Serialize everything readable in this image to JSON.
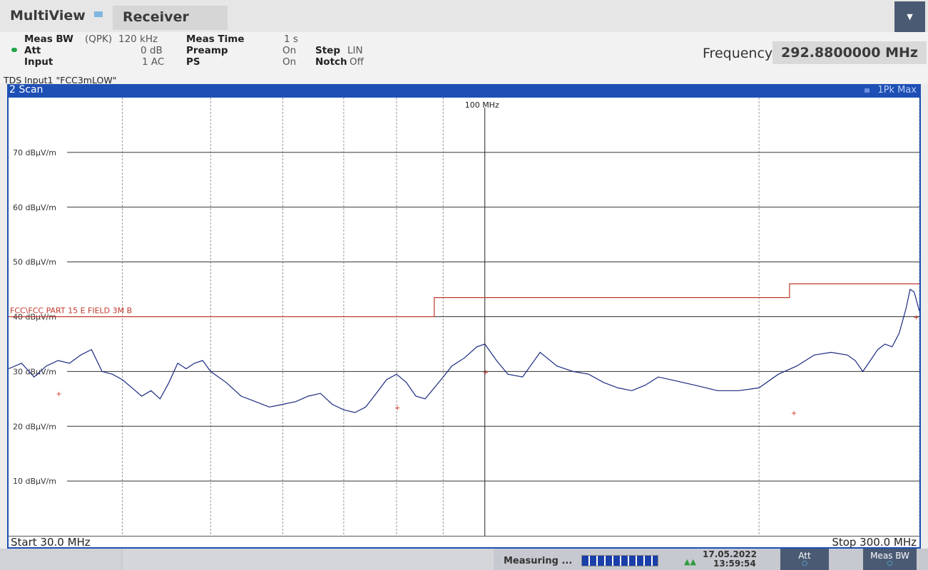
{
  "header": {
    "app_title": "MultiView",
    "tab": "Receiver"
  },
  "params": {
    "meas_bw_label": "Meas BW",
    "meas_bw_mode": "(QPK)",
    "meas_bw_value": "120 kHz",
    "att_label": "Att",
    "att_value": "0 dB",
    "input_label": "Input",
    "input_value": "1 AC",
    "meas_time_label": "Meas Time",
    "meas_time_value": "1 s",
    "preamp_label": "Preamp",
    "preamp_value": "On",
    "ps_label": "PS",
    "ps_value": "On",
    "step_label": "Step",
    "step_value": "LIN",
    "notch_label": "Notch",
    "notch_value": "Off",
    "tds": "TDS Input1 \"FCC3mLOW\""
  },
  "frequency": {
    "label": "Frequency",
    "value": "292.8800000 MHz"
  },
  "scan": {
    "title": "2 Scan",
    "trace": "1Pk Max"
  },
  "chart_data": {
    "type": "line",
    "x_scale": "log",
    "x_range_mhz": [
      30,
      300
    ],
    "y_range": [
      0,
      80
    ],
    "y_unit": "dBµV/m",
    "y_ticks": [
      {
        "value": 70,
        "label": "70 dBµV/m"
      },
      {
        "value": 60,
        "label": "60 dBµV/m"
      },
      {
        "value": 50,
        "label": "50 dBµV/m"
      },
      {
        "value": 40,
        "label": "40 dBµV/m"
      },
      {
        "value": 30,
        "label": "30 dBµV/m"
      },
      {
        "value": 20,
        "label": "20 dBµV/m"
      },
      {
        "value": 10,
        "label": "10 dBµV/m"
      }
    ],
    "x_marker_label": "100 MHz",
    "x_marker_mhz": 100,
    "grid": true,
    "limit_line": {
      "name": "FCC\\FCC PART 15 E FIELD 3M B",
      "color": "#c0392b",
      "points": [
        [
          30,
          40.0
        ],
        [
          88,
          40.0
        ],
        [
          88,
          43.5
        ],
        [
          216,
          43.5
        ],
        [
          216,
          46.0
        ],
        [
          300,
          46.0
        ]
      ]
    },
    "series": [
      {
        "name": "1Pk Max",
        "color": "#1b2a80",
        "points": [
          [
            30,
            30.5
          ],
          [
            31,
            31.5
          ],
          [
            32,
            29.0
          ],
          [
            33,
            31.0
          ],
          [
            34,
            32.0
          ],
          [
            35,
            31.5
          ],
          [
            36,
            33.0
          ],
          [
            37,
            34.0
          ],
          [
            38,
            30.0
          ],
          [
            39,
            29.5
          ],
          [
            40,
            28.5
          ],
          [
            41,
            27.0
          ],
          [
            42,
            25.5
          ],
          [
            43,
            26.5
          ],
          [
            44,
            25.0
          ],
          [
            45,
            28.0
          ],
          [
            46,
            31.5
          ],
          [
            47,
            30.5
          ],
          [
            48,
            31.5
          ],
          [
            49,
            32.0
          ],
          [
            50,
            30.0
          ],
          [
            52,
            28.0
          ],
          [
            54,
            25.5
          ],
          [
            56,
            24.5
          ],
          [
            58,
            23.5
          ],
          [
            60,
            24.0
          ],
          [
            62,
            24.5
          ],
          [
            64,
            25.5
          ],
          [
            66,
            26.0
          ],
          [
            68,
            24.0
          ],
          [
            70,
            23.0
          ],
          [
            72,
            22.5
          ],
          [
            74,
            23.5
          ],
          [
            76,
            26.0
          ],
          [
            78,
            28.5
          ],
          [
            80,
            29.5
          ],
          [
            82,
            28.0
          ],
          [
            84,
            25.5
          ],
          [
            86,
            25.0
          ],
          [
            88,
            27.0
          ],
          [
            90,
            29.0
          ],
          [
            92,
            31.0
          ],
          [
            95,
            32.5
          ],
          [
            98,
            34.5
          ],
          [
            100,
            35.0
          ],
          [
            103,
            32.0
          ],
          [
            106,
            29.5
          ],
          [
            110,
            29.0
          ],
          [
            115,
            33.5
          ],
          [
            120,
            31.0
          ],
          [
            125,
            30.0
          ],
          [
            130,
            29.5
          ],
          [
            135,
            28.0
          ],
          [
            140,
            27.0
          ],
          [
            145,
            26.5
          ],
          [
            150,
            27.5
          ],
          [
            155,
            29.0
          ],
          [
            160,
            28.5
          ],
          [
            165,
            28.0
          ],
          [
            170,
            27.5
          ],
          [
            175,
            27.0
          ],
          [
            180,
            26.5
          ],
          [
            190,
            26.5
          ],
          [
            200,
            27.0
          ],
          [
            210,
            29.5
          ],
          [
            220,
            31.0
          ],
          [
            230,
            33.0
          ],
          [
            240,
            33.5
          ],
          [
            250,
            33.0
          ],
          [
            255,
            32.0
          ],
          [
            260,
            30.0
          ],
          [
            265,
            32.0
          ],
          [
            270,
            34.0
          ],
          [
            275,
            35.0
          ],
          [
            280,
            34.5
          ],
          [
            285,
            37.0
          ],
          [
            290,
            41.5
          ],
          [
            293,
            45.0
          ],
          [
            296,
            44.5
          ],
          [
            300,
            41.0
          ]
        ]
      }
    ],
    "qp_markers": [
      [
        34,
        26.0
      ],
      [
        80,
        23.5
      ],
      [
        100,
        30.0
      ],
      [
        218,
        22.5
      ],
      [
        297,
        40.0
      ]
    ]
  },
  "sweep": {
    "start": "Start 30.0 MHz",
    "stop": "Stop 300.0 MHz"
  },
  "status": {
    "measuring": "Measuring ...",
    "progress": 1.0,
    "date": "17.05.2022",
    "time": "13:59:54",
    "softkey_att": "Att",
    "softkey_measbw": "Meas BW"
  }
}
